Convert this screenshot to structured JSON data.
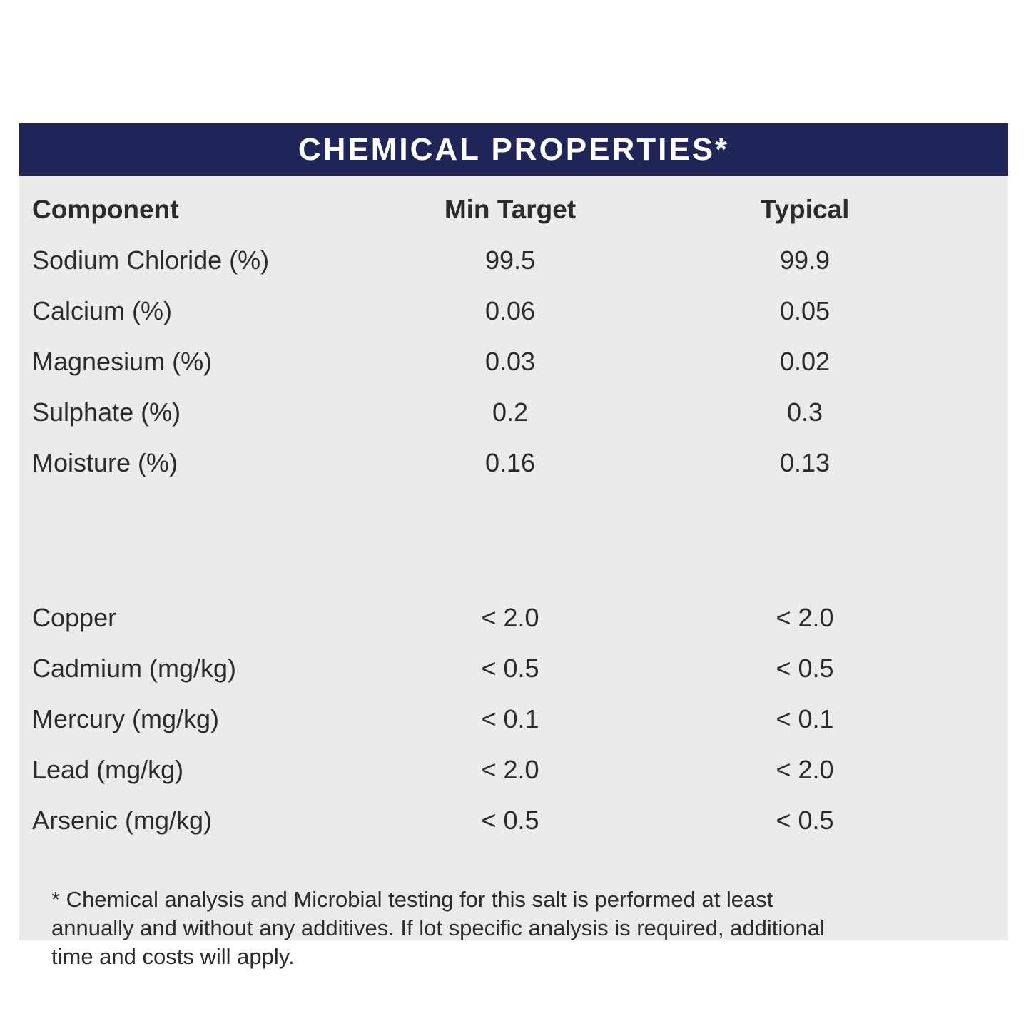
{
  "colors": {
    "header_bg": "#212456",
    "panel_bg": "#ebebeb",
    "title_text": "#ffffff",
    "body_text": "#2b2b2b"
  },
  "title_bar": {
    "title": "CHEMICAL PROPERTIES*"
  },
  "table": {
    "columns": [
      "Component",
      "Min Target",
      "Typical"
    ],
    "groups": [
      {
        "rows": [
          {
            "component": "Sodium Chloride (%)",
            "min_target": "99.5",
            "typical": "99.9"
          },
          {
            "component": "Calcium (%)",
            "min_target": "0.06",
            "typical": "0.05"
          },
          {
            "component": "Magnesium (%)",
            "min_target": "0.03",
            "typical": "0.02"
          },
          {
            "component": "Sulphate (%)",
            "min_target": "0.2",
            "typical": "0.3"
          },
          {
            "component": "Moisture (%)",
            "min_target": "0.16",
            "typical": "0.13"
          }
        ]
      },
      {
        "rows": [
          {
            "component": "Copper",
            "min_target": "< 2.0",
            "typical": "< 2.0"
          },
          {
            "component": "Cadmium (mg/kg)",
            "min_target": "< 0.5",
            "typical": "< 0.5"
          },
          {
            "component": "Mercury (mg/kg)",
            "min_target": "< 0.1",
            "typical": "< 0.1"
          },
          {
            "component": "Lead (mg/kg)",
            "min_target": "< 2.0",
            "typical": "< 2.0"
          },
          {
            "component": "Arsenic (mg/kg)",
            "min_target": "< 0.5",
            "typical": "< 0.5"
          }
        ]
      }
    ]
  },
  "footnote": "* Chemical analysis and Microbial testing for this salt is performed at least\nannually and without any additives. If lot specific analysis is required, additional\ntime and costs will apply."
}
